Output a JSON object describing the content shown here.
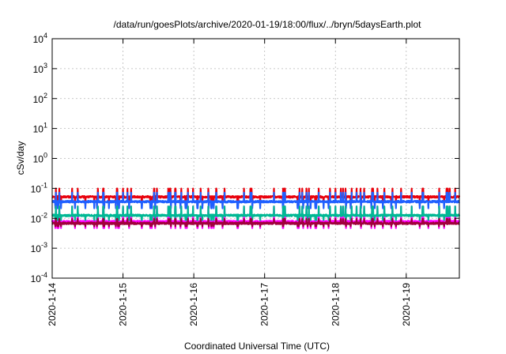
{
  "chart_data": {
    "type": "line",
    "title": "/data/run/goesPlots/archive/2020-01-19/18:00/flux/../bryn/5daysEarth.plot",
    "xlabel": "Coordinated Universal Time (UTC)",
    "ylabel": "cSv/day",
    "y_scale": "log",
    "ylim": [
      0.0001,
      10000
    ],
    "y_ticks": [
      {
        "base": "10",
        "exp": "-4"
      },
      {
        "base": "10",
        "exp": "-3"
      },
      {
        "base": "10",
        "exp": "-2"
      },
      {
        "base": "10",
        "exp": "-1"
      },
      {
        "base": "10",
        "exp": "0"
      },
      {
        "base": "10",
        "exp": "1"
      },
      {
        "base": "10",
        "exp": "2"
      },
      {
        "base": "10",
        "exp": "3"
      },
      {
        "base": "10",
        "exp": "4"
      }
    ],
    "xlim": [
      "2020-01-14 00:00",
      "2020-01-19 18:00"
    ],
    "x_ticks": [
      "2020-1-14",
      "2020-1-15",
      "2020-1-16",
      "2020-1-17",
      "2020-1-18",
      "2020-1-19"
    ],
    "grid": true,
    "series": [
      {
        "color": "#e8000b",
        "base": 0.052,
        "dip": 0.5,
        "spike": 1.9
      },
      {
        "color": "#1f5fff",
        "base": 0.036,
        "dip": 0.6,
        "spike": 2.0
      },
      {
        "color": "#ff00ff",
        "base": 0.0078,
        "dip": 0.6,
        "spike": 3.2
      },
      {
        "color": "#00b894",
        "base": 0.0125,
        "dip": 0.7,
        "spike": 2.0
      },
      {
        "color": "#a0003c",
        "base": 0.0068,
        "dip": 0.8,
        "spike": 1.4
      }
    ]
  }
}
